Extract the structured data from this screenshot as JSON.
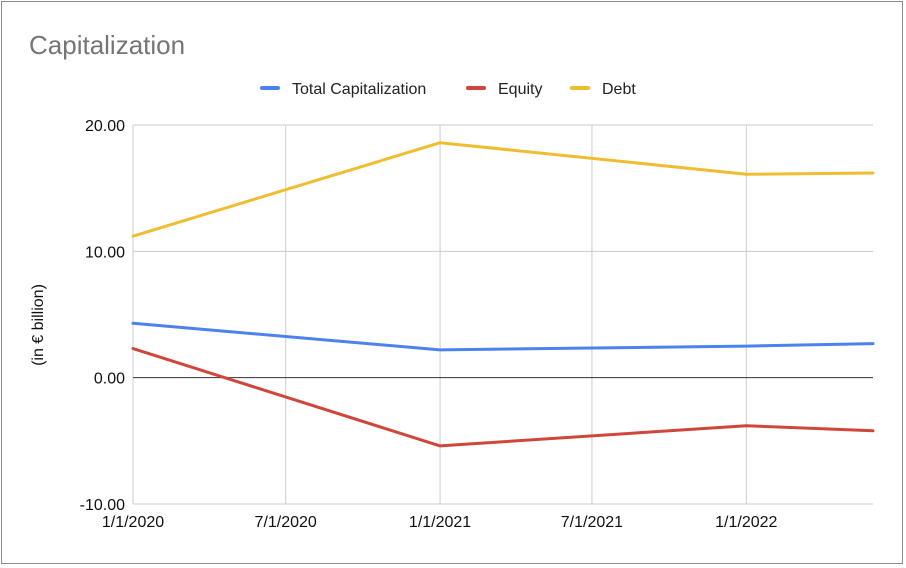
{
  "chart_data": {
    "type": "line",
    "title": "Capitalization",
    "ylabel": "(in € billion)",
    "xlabel": "",
    "x_tick_labels": [
      "1/1/2020",
      "7/1/2020",
      "1/1/2021",
      "7/1/2021",
      "1/1/2022"
    ],
    "x_tick_dates": [
      "2020-01-01",
      "2020-07-01",
      "2021-01-01",
      "2021-07-01",
      "2022-01-01"
    ],
    "x_range": [
      "2020-01-01",
      "2022-06-01"
    ],
    "y_tick_labels": [
      "20.00",
      "10.00",
      "0.00",
      "-10.00"
    ],
    "y_ticks": [
      20,
      10,
      0,
      -10
    ],
    "ylim": [
      -10,
      20
    ],
    "grid": true,
    "legend_position": "top",
    "series": [
      {
        "name": "Total Capitalization",
        "color": "#4c82f0",
        "points": [
          {
            "x": "2020-01-01",
            "y": 4.3
          },
          {
            "x": "2021-01-01",
            "y": 2.2
          },
          {
            "x": "2022-01-01",
            "y": 2.5
          },
          {
            "x": "2022-06-01",
            "y": 2.7
          }
        ]
      },
      {
        "name": "Equity",
        "color": "#d0463b",
        "points": [
          {
            "x": "2020-01-01",
            "y": 2.3
          },
          {
            "x": "2021-01-01",
            "y": -5.4
          },
          {
            "x": "2022-01-01",
            "y": -3.8
          },
          {
            "x": "2022-06-01",
            "y": -4.2
          }
        ]
      },
      {
        "name": "Debt",
        "color": "#f0bd30",
        "points": [
          {
            "x": "2020-01-01",
            "y": 11.2
          },
          {
            "x": "2021-01-01",
            "y": 18.6
          },
          {
            "x": "2022-01-01",
            "y": 16.1
          },
          {
            "x": "2022-06-01",
            "y": 16.2
          }
        ]
      }
    ]
  }
}
